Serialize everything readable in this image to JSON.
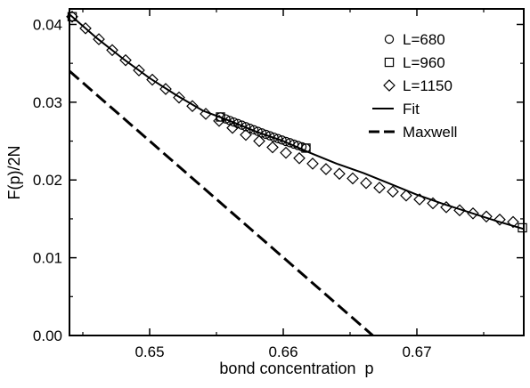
{
  "chart_data": {
    "type": "line",
    "title": "",
    "xlabel": "bond concentration  p",
    "ylabel": "F(p)/2N",
    "xlim": [
      0.644,
      0.678
    ],
    "ylim": [
      0.0,
      0.042
    ],
    "x_ticks": [
      0.65,
      0.66,
      0.67
    ],
    "x_tick_labels": [
      "0.65",
      "0.66",
      "0.67"
    ],
    "y_ticks": [
      0.0,
      0.01,
      0.02,
      0.03,
      0.04
    ],
    "y_tick_labels": [
      "0.00",
      "0.01",
      "0.02",
      "0.03",
      "0.04"
    ],
    "grid": false,
    "legend_position": "top-right",
    "series": [
      {
        "name": "L=680",
        "kind": "markers",
        "marker": "circle",
        "x": [
          0.6553,
          0.6557,
          0.656,
          0.6563,
          0.6566,
          0.6569,
          0.6572,
          0.6575,
          0.6578,
          0.6581,
          0.6584,
          0.6587,
          0.659,
          0.6593,
          0.6596,
          0.6599,
          0.6602,
          0.6605,
          0.6608,
          0.6611,
          0.6614,
          0.6617
        ],
        "y": [
          0.0281,
          0.02785,
          0.02765,
          0.02745,
          0.02725,
          0.02705,
          0.02685,
          0.02665,
          0.02645,
          0.02625,
          0.02605,
          0.02587,
          0.02568,
          0.0255,
          0.02532,
          0.02514,
          0.02496,
          0.02479,
          0.02461,
          0.02444,
          0.02427,
          0.0241
        ]
      },
      {
        "name": "L=960",
        "kind": "markers",
        "marker": "square",
        "x": [
          0.6442,
          0.6553,
          0.6617,
          0.6779
        ],
        "y": [
          0.041,
          0.0281,
          0.0241,
          0.01385
        ]
      },
      {
        "name": "L=1150",
        "kind": "markers",
        "marker": "diamond",
        "x": [
          0.6442,
          0.6452,
          0.6462,
          0.6472,
          0.6482,
          0.6492,
          0.6502,
          0.6512,
          0.6522,
          0.6532,
          0.6542,
          0.6552,
          0.6562,
          0.6572,
          0.6582,
          0.6592,
          0.6602,
          0.6612,
          0.6622,
          0.6632,
          0.6642,
          0.6652,
          0.6662,
          0.6672,
          0.6682,
          0.6692,
          0.6702,
          0.6712,
          0.6722,
          0.6732,
          0.6742,
          0.6752,
          0.6762,
          0.6772
        ],
        "y": [
          0.041,
          0.0395,
          0.0381,
          0.0367,
          0.0354,
          0.0341,
          0.0329,
          0.0317,
          0.0306,
          0.0295,
          0.0285,
          0.0276,
          0.0267,
          0.0258,
          0.025,
          0.0242,
          0.0235,
          0.0228,
          0.0221,
          0.0214,
          0.0208,
          0.0202,
          0.0196,
          0.019,
          0.0185,
          0.018,
          0.0175,
          0.017,
          0.0165,
          0.0161,
          0.0157,
          0.0153,
          0.0149,
          0.0146
        ]
      },
      {
        "name": "Fit",
        "kind": "line",
        "style": "solid",
        "x": [
          0.644,
          0.646,
          0.648,
          0.65,
          0.652,
          0.654,
          0.656,
          0.658,
          0.66,
          0.662,
          0.664,
          0.666,
          0.668,
          0.67,
          0.672,
          0.674,
          0.676,
          0.678
        ],
        "y": [
          0.0413,
          0.0383,
          0.0356,
          0.0331,
          0.0309,
          0.0289,
          0.0276,
          0.0262,
          0.025,
          0.0235,
          0.0221,
          0.0209,
          0.0195,
          0.0181,
          0.0169,
          0.0158,
          0.0147,
          0.0137
        ]
      },
      {
        "name": "Maxwell",
        "kind": "line",
        "style": "dashed",
        "x": [
          0.644,
          0.6667
        ],
        "y": [
          0.034,
          0.0
        ]
      }
    ]
  }
}
